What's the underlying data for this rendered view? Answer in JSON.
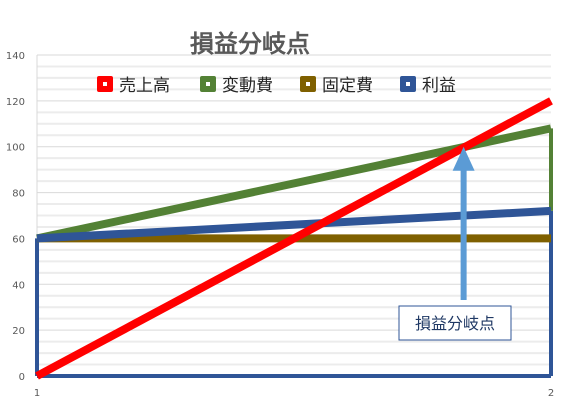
{
  "chart_data": {
    "type": "line",
    "title": "損益分岐点",
    "x": [
      "1",
      "2"
    ],
    "series": [
      {
        "name": "売上高",
        "values": [
          0,
          120
        ],
        "color": "#ff0000"
      },
      {
        "name": "変動費",
        "values": [
          60,
          108
        ],
        "color": "#538135"
      },
      {
        "name": "固定費",
        "values": [
          60,
          60
        ],
        "color": "#7f6000"
      },
      {
        "name": "利益",
        "values": [
          60,
          72
        ],
        "color": "#2f5597"
      }
    ],
    "ylim": [
      0,
      140
    ],
    "yticks": [
      "0",
      "20",
      "40",
      "60",
      "80",
      "100",
      "120",
      "140"
    ],
    "grid": true,
    "legend_position": "top",
    "annotation": {
      "text": "損益分岐点",
      "point": {
        "x": 1.83,
        "y": 100
      },
      "arrow_color": "#5b9bd5",
      "box_border": "#2f5597"
    },
    "frame": {
      "color": "#2f5597",
      "left_value": 60,
      "right_value": 72
    }
  }
}
